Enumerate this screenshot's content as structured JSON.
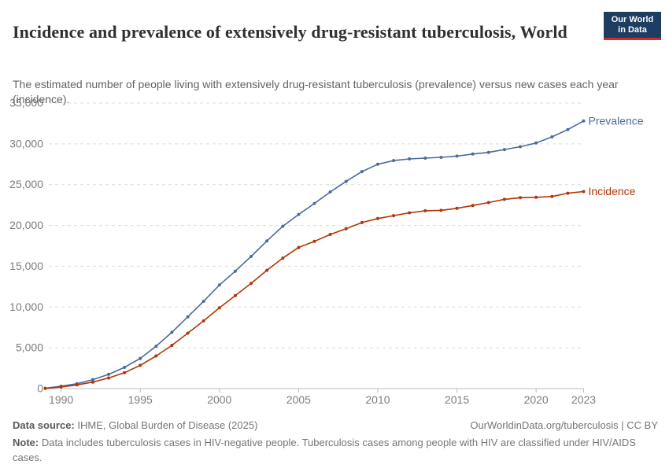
{
  "header": {
    "title": "Incidence and prevalence of extensively drug-resistant tuberculosis, World",
    "subtitle": "The estimated number of people living with extensively drug-resistant tuberculosis (prevalence) versus new cases each year (incidence).",
    "logo": {
      "line1": "Our World",
      "line2": "in Data",
      "bg_color": "#1d3d63",
      "stripe_color": "#d82a1e"
    }
  },
  "footer": {
    "source_label": "Data source:",
    "source_text": " IHME, Global Burden of Disease (2025)",
    "rights": "OurWorldinData.org/tuberculosis | CC BY",
    "note_label": "Note:",
    "note_text": " Data includes tuberculosis cases in HIV-negative people. Tuberculosis cases among people with HIV are classified under HIV/AIDS cases."
  },
  "chart_data": {
    "type": "line",
    "title": "Incidence and prevalence of extensively drug-resistant tuberculosis, World",
    "xlabel": "",
    "ylabel": "",
    "xlim": [
      1989,
      2023
    ],
    "ylim": [
      0,
      35000
    ],
    "xticks": [
      1990,
      1995,
      2000,
      2005,
      2010,
      2015,
      2020,
      2023
    ],
    "yticks": [
      0,
      5000,
      10000,
      15000,
      20000,
      25000,
      30000,
      35000
    ],
    "grid": "dashed-horizontal",
    "legend": "end-of-line-labels",
    "x": [
      1989,
      1990,
      1991,
      1992,
      1993,
      1994,
      1995,
      1996,
      1997,
      1998,
      1999,
      2000,
      2001,
      2002,
      2003,
      2004,
      2005,
      2006,
      2007,
      2008,
      2009,
      2010,
      2011,
      2012,
      2013,
      2014,
      2015,
      2016,
      2017,
      2018,
      2019,
      2020,
      2021,
      2022,
      2023
    ],
    "series": [
      {
        "name": "Prevalence",
        "color": "#4C6A9C",
        "values": [
          40,
          300,
          600,
          1100,
          1750,
          2600,
          3700,
          5200,
          6900,
          8800,
          10700,
          12700,
          14400,
          16200,
          18100,
          19900,
          21350,
          22700,
          24100,
          25400,
          26600,
          27500,
          27950,
          28150,
          28250,
          28350,
          28500,
          28750,
          28950,
          29300,
          29650,
          30100,
          30850,
          31750,
          32800
        ]
      },
      {
        "name": "Incidence",
        "color": "#B13507",
        "values": [
          30,
          200,
          450,
          800,
          1300,
          1950,
          2850,
          4000,
          5300,
          6800,
          8300,
          9900,
          11400,
          12900,
          14500,
          16000,
          17300,
          18050,
          18900,
          19600,
          20350,
          20850,
          21200,
          21550,
          21800,
          21850,
          22100,
          22450,
          22800,
          23200,
          23400,
          23450,
          23550,
          23950,
          24150
        ]
      }
    ],
    "axis_color": "#bcbcbc",
    "grid_color": "#dcdcdc",
    "tick_label_color": "#7d7d7d"
  }
}
